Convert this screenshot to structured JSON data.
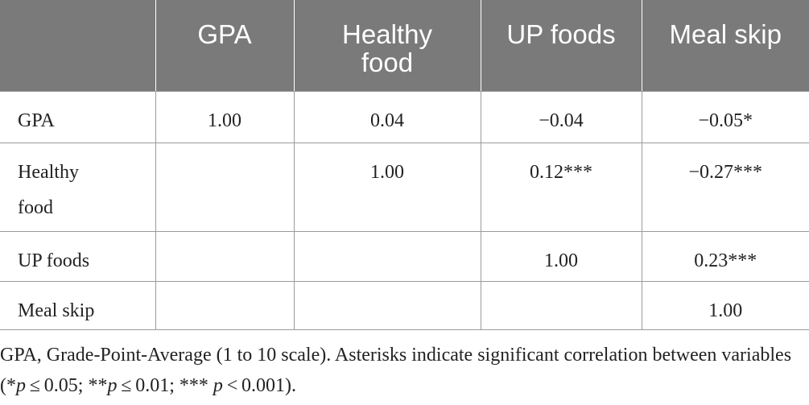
{
  "table": {
    "headers": [
      "",
      "GPA",
      "Healthy food",
      "UP foods",
      "Meal skip"
    ],
    "header_lines": {
      "h2_line1": "Healthy",
      "h2_line2": "food"
    },
    "rows": [
      {
        "label": "GPA",
        "label_line1": "GPA",
        "label_line2": "",
        "cells": [
          "1.00",
          "0.04",
          "−0.04",
          "−0.05*"
        ]
      },
      {
        "label": "Healthy food",
        "label_line1": "Healthy",
        "label_line2": "food",
        "cells": [
          "",
          "1.00",
          "0.12***",
          "−0.27***"
        ]
      },
      {
        "label": "UP foods",
        "label_line1": "UP foods",
        "label_line2": "",
        "cells": [
          "",
          "",
          "1.00",
          "0.23***"
        ]
      },
      {
        "label": "Meal skip",
        "label_line1": "Meal skip",
        "label_line2": "",
        "cells": [
          "",
          "",
          "",
          "1.00"
        ]
      }
    ]
  },
  "footnote": {
    "part1": "GPA, Grade-Point-Average (1 to 10 scale). Asterisks indicate significant correlation between variables (*",
    "p1": "p",
    "part2": " ≤ 0.05; **",
    "p2": "p",
    "part3": " ≤ 0.01; *** ",
    "p3": "p",
    "part4": " < 0.001)."
  },
  "colors": {
    "header_bg": "#7a7a7a",
    "header_text": "#ffffff",
    "grid_line": "#9a9a9a",
    "body_text": "#222222"
  }
}
